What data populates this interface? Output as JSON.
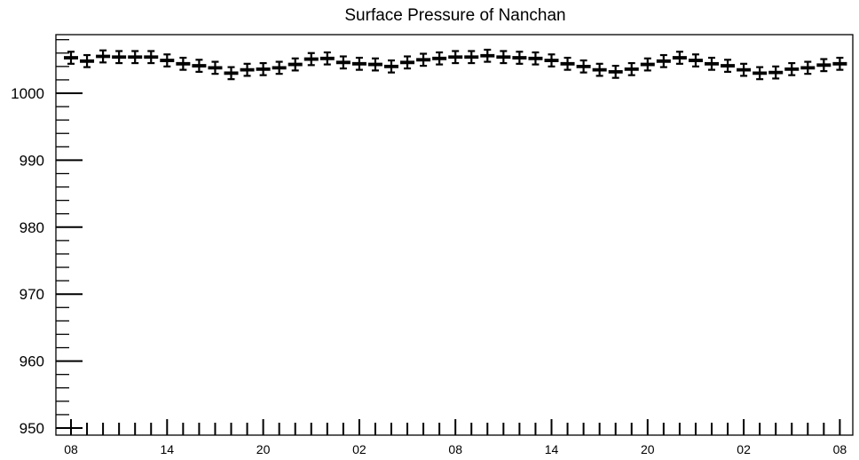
{
  "chart_data": {
    "type": "scatter",
    "title": "Surface Pressure of Nanchan",
    "xlabel": "",
    "ylabel": "",
    "ylim": [
      950,
      1009
    ],
    "y_ticks": [
      950,
      960,
      970,
      980,
      990,
      1000
    ],
    "y_tick_labels": [
      "950",
      "960",
      "970",
      "980",
      "990",
      "1000"
    ],
    "x_tick_labels": [
      "08",
      "14",
      "20",
      "02",
      "08",
      "14",
      "20",
      "02",
      "08"
    ],
    "x_tick_label_index": [
      0,
      6,
      12,
      18,
      24,
      30,
      36,
      42,
      48
    ],
    "x_range": [
      -1,
      49
    ],
    "error_bar_half_width": 0.9,
    "grid": false,
    "series": [
      {
        "values": [
          1005.3,
          1004.8,
          1005.5,
          1005.4,
          1005.4,
          1005.4,
          1004.9,
          1004.4,
          1004.1,
          1003.8,
          1003.0,
          1003.5,
          1003.6,
          1003.8,
          1004.3,
          1005.1,
          1005.2,
          1004.6,
          1004.4,
          1004.3,
          1004.0,
          1004.6,
          1005.0,
          1005.2,
          1005.4,
          1005.4,
          1005.6,
          1005.4,
          1005.3,
          1005.2,
          1004.9,
          1004.4,
          1004.0,
          1003.5,
          1003.2,
          1003.6,
          1004.3,
          1004.8,
          1005.3,
          1004.9,
          1004.4,
          1004.1,
          1003.5,
          1003.0,
          1003.1,
          1003.6,
          1003.8,
          1004.2,
          1004.4
        ]
      }
    ]
  }
}
